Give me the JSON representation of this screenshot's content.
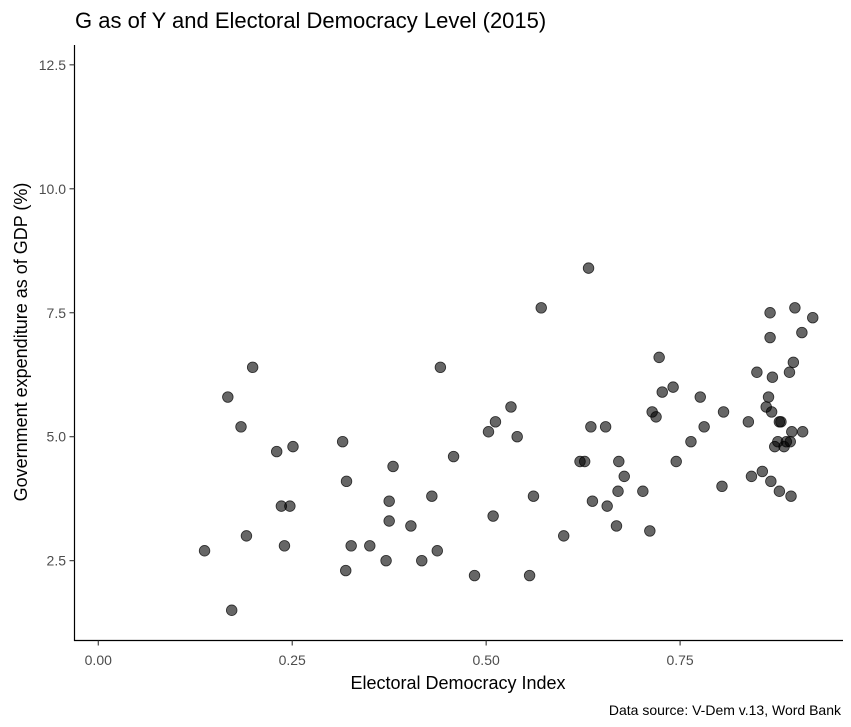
{
  "chart_data": {
    "type": "scatter",
    "title": "G as of Y and Electoral Democracy Level (2015)",
    "xlabel": "Electoral Democracy Index",
    "ylabel": "Government expenditure as of GDP (%)",
    "caption": "Data source: V-Dem v.13, Word Bank",
    "xlim": [
      -0.03,
      0.96
    ],
    "ylim": [
      0.9,
      12.9
    ],
    "x_ticks": [
      0.0,
      0.25,
      0.5,
      0.75
    ],
    "x_tick_labels": [
      "0.00",
      "0.25",
      "0.50",
      "0.75"
    ],
    "y_ticks": [
      2.5,
      5.0,
      7.5,
      10.0,
      12.5
    ],
    "y_tick_labels": [
      "2.5",
      "5.0",
      "7.5",
      "10.0",
      "12.5"
    ],
    "grid": false,
    "point_color": "#000000",
    "points": [
      {
        "x": 0.137,
        "y": 2.7
      },
      {
        "x": 0.167,
        "y": 5.8
      },
      {
        "x": 0.172,
        "y": 1.5
      },
      {
        "x": 0.184,
        "y": 5.2
      },
      {
        "x": 0.191,
        "y": 3.0
      },
      {
        "x": 0.199,
        "y": 6.4
      },
      {
        "x": 0.23,
        "y": 4.7
      },
      {
        "x": 0.236,
        "y": 3.6
      },
      {
        "x": 0.24,
        "y": 2.8
      },
      {
        "x": 0.247,
        "y": 3.6
      },
      {
        "x": 0.251,
        "y": 4.8
      },
      {
        "x": 0.315,
        "y": 4.9
      },
      {
        "x": 0.319,
        "y": 2.3
      },
      {
        "x": 0.32,
        "y": 4.1
      },
      {
        "x": 0.326,
        "y": 2.8
      },
      {
        "x": 0.35,
        "y": 2.8
      },
      {
        "x": 0.371,
        "y": 2.5
      },
      {
        "x": 0.375,
        "y": 3.7
      },
      {
        "x": 0.375,
        "y": 3.3
      },
      {
        "x": 0.38,
        "y": 4.4
      },
      {
        "x": 0.403,
        "y": 3.2
      },
      {
        "x": 0.417,
        "y": 2.5
      },
      {
        "x": 0.43,
        "y": 3.8
      },
      {
        "x": 0.437,
        "y": 2.7
      },
      {
        "x": 0.441,
        "y": 6.4
      },
      {
        "x": 0.458,
        "y": 4.6
      },
      {
        "x": 0.485,
        "y": 2.2
      },
      {
        "x": 0.503,
        "y": 5.1
      },
      {
        "x": 0.509,
        "y": 3.4
      },
      {
        "x": 0.512,
        "y": 5.3
      },
      {
        "x": 0.532,
        "y": 5.6
      },
      {
        "x": 0.54,
        "y": 5.0
      },
      {
        "x": 0.556,
        "y": 2.2
      },
      {
        "x": 0.561,
        "y": 3.8
      },
      {
        "x": 0.571,
        "y": 7.6
      },
      {
        "x": 0.6,
        "y": 3.0
      },
      {
        "x": 0.621,
        "y": 4.5
      },
      {
        "x": 0.627,
        "y": 4.5
      },
      {
        "x": 0.632,
        "y": 8.4
      },
      {
        "x": 0.635,
        "y": 5.2
      },
      {
        "x": 0.637,
        "y": 3.7
      },
      {
        "x": 0.654,
        "y": 5.2
      },
      {
        "x": 0.656,
        "y": 3.6
      },
      {
        "x": 0.668,
        "y": 3.2
      },
      {
        "x": 0.67,
        "y": 3.9
      },
      {
        "x": 0.671,
        "y": 4.5
      },
      {
        "x": 0.678,
        "y": 4.2
      },
      {
        "x": 0.702,
        "y": 3.9
      },
      {
        "x": 0.711,
        "y": 3.1
      },
      {
        "x": 0.714,
        "y": 5.5
      },
      {
        "x": 0.719,
        "y": 5.4
      },
      {
        "x": 0.723,
        "y": 6.6
      },
      {
        "x": 0.727,
        "y": 5.9
      },
      {
        "x": 0.741,
        "y": 6.0
      },
      {
        "x": 0.745,
        "y": 4.5
      },
      {
        "x": 0.764,
        "y": 4.9
      },
      {
        "x": 0.776,
        "y": 5.8
      },
      {
        "x": 0.781,
        "y": 5.2
      },
      {
        "x": 0.804,
        "y": 4.0
      },
      {
        "x": 0.806,
        "y": 5.5
      },
      {
        "x": 0.838,
        "y": 5.3
      },
      {
        "x": 0.842,
        "y": 4.2
      },
      {
        "x": 0.849,
        "y": 6.3
      },
      {
        "x": 0.856,
        "y": 4.3
      },
      {
        "x": 0.861,
        "y": 5.6
      },
      {
        "x": 0.864,
        "y": 5.8
      },
      {
        "x": 0.866,
        "y": 7.5
      },
      {
        "x": 0.866,
        "y": 7.0
      },
      {
        "x": 0.867,
        "y": 4.1
      },
      {
        "x": 0.868,
        "y": 5.5
      },
      {
        "x": 0.869,
        "y": 6.2
      },
      {
        "x": 0.872,
        "y": 4.8
      },
      {
        "x": 0.876,
        "y": 4.9
      },
      {
        "x": 0.878,
        "y": 5.3
      },
      {
        "x": 0.878,
        "y": 3.9
      },
      {
        "x": 0.88,
        "y": 5.3
      },
      {
        "x": 0.884,
        "y": 4.8
      },
      {
        "x": 0.887,
        "y": 4.9
      },
      {
        "x": 0.891,
        "y": 6.3
      },
      {
        "x": 0.892,
        "y": 4.9
      },
      {
        "x": 0.893,
        "y": 3.8
      },
      {
        "x": 0.894,
        "y": 5.1
      },
      {
        "x": 0.896,
        "y": 6.5
      },
      {
        "x": 0.898,
        "y": 7.6
      },
      {
        "x": 0.907,
        "y": 7.1
      },
      {
        "x": 0.908,
        "y": 5.1
      },
      {
        "x": 0.921,
        "y": 7.4
      }
    ]
  }
}
